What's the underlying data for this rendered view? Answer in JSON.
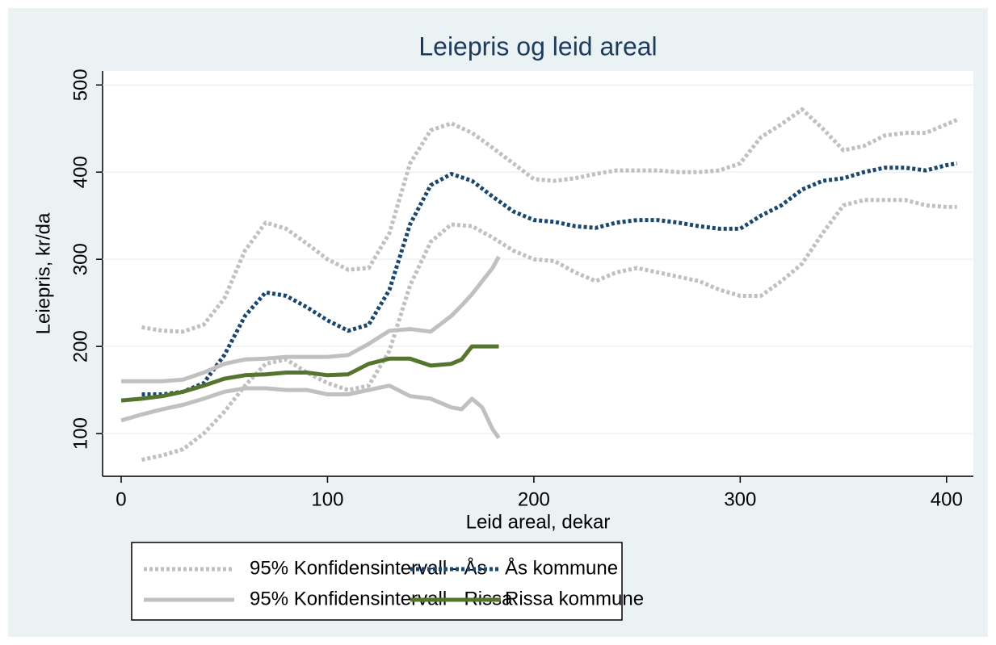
{
  "chart_data": {
    "type": "line",
    "title": "Leiepris og leid areal",
    "x_label": "Leid areal, dekar",
    "y_label": "Leiepris, kr/da",
    "xlim": [
      -9,
      413
    ],
    "ylim": [
      51,
      516
    ],
    "xticks": [
      0,
      100,
      200,
      300,
      400
    ],
    "yticks": [
      100,
      200,
      300,
      400,
      500
    ],
    "grid": true,
    "series": [
      {
        "name": "95% Konfidensintervall - Ås",
        "color": "#c0c0c0",
        "style": "dotted",
        "x": [
          10,
          20,
          30,
          40,
          50,
          60,
          70,
          80,
          90,
          100,
          110,
          120,
          130,
          140,
          150,
          160,
          170,
          180,
          190,
          200,
          210,
          220,
          230,
          240,
          250,
          260,
          270,
          280,
          290,
          300,
          310,
          320,
          330,
          340,
          350,
          360,
          370,
          380,
          390,
          400,
          405
        ],
        "upper": [
          222,
          218,
          217,
          225,
          255,
          310,
          342,
          335,
          318,
          300,
          288,
          290,
          330,
          410,
          448,
          456,
          445,
          428,
          410,
          392,
          390,
          393,
          398,
          402,
          402,
          402,
          400,
          400,
          402,
          410,
          440,
          455,
          472,
          450,
          425,
          430,
          442,
          445,
          445,
          455,
          460
        ],
        "lower": [
          70,
          75,
          82,
          100,
          125,
          155,
          180,
          185,
          170,
          158,
          150,
          155,
          195,
          270,
          320,
          340,
          338,
          325,
          310,
          300,
          298,
          285,
          275,
          285,
          290,
          285,
          280,
          275,
          265,
          258,
          258,
          275,
          295,
          330,
          362,
          368,
          368,
          368,
          362,
          360,
          360
        ]
      },
      {
        "name": "Ås kommune",
        "color": "#1a476f",
        "style": "dotted",
        "x": [
          10,
          20,
          30,
          40,
          50,
          60,
          70,
          80,
          90,
          100,
          110,
          120,
          130,
          140,
          150,
          160,
          170,
          180,
          190,
          200,
          210,
          220,
          230,
          240,
          250,
          260,
          270,
          280,
          290,
          300,
          310,
          320,
          330,
          340,
          350,
          360,
          370,
          380,
          390,
          400,
          405
        ],
        "values": [
          145,
          145,
          148,
          158,
          190,
          235,
          262,
          258,
          245,
          230,
          218,
          225,
          265,
          340,
          385,
          398,
          390,
          372,
          355,
          345,
          343,
          338,
          336,
          342,
          345,
          345,
          342,
          338,
          335,
          335,
          350,
          362,
          380,
          390,
          393,
          400,
          405,
          405,
          402,
          408,
          410
        ]
      },
      {
        "name": "95% Konfidensintervall - Rissa",
        "color": "#c0c0c0",
        "style": "solid",
        "x": [
          0,
          10,
          20,
          30,
          40,
          50,
          60,
          70,
          80,
          90,
          100,
          110,
          120,
          130,
          140,
          150,
          160,
          165,
          170,
          175,
          180,
          183
        ],
        "upper": [
          160,
          160,
          160,
          162,
          170,
          180,
          185,
          186,
          188,
          188,
          188,
          190,
          203,
          218,
          220,
          217,
          235,
          247,
          260,
          275,
          290,
          303
        ],
        "lower": [
          115,
          122,
          128,
          133,
          140,
          148,
          152,
          152,
          150,
          150,
          145,
          145,
          150,
          155,
          143,
          140,
          130,
          128,
          140,
          130,
          105,
          95
        ]
      },
      {
        "name": "Rissa kommune",
        "color": "#55752f",
        "style": "solid",
        "x": [
          0,
          10,
          20,
          30,
          40,
          50,
          60,
          70,
          80,
          90,
          100,
          110,
          120,
          130,
          140,
          150,
          160,
          165,
          170,
          180,
          183
        ],
        "values": [
          138,
          140,
          143,
          148,
          155,
          163,
          167,
          168,
          170,
          170,
          167,
          168,
          180,
          186,
          186,
          178,
          180,
          185,
          200,
          200,
          200
        ]
      }
    ]
  }
}
